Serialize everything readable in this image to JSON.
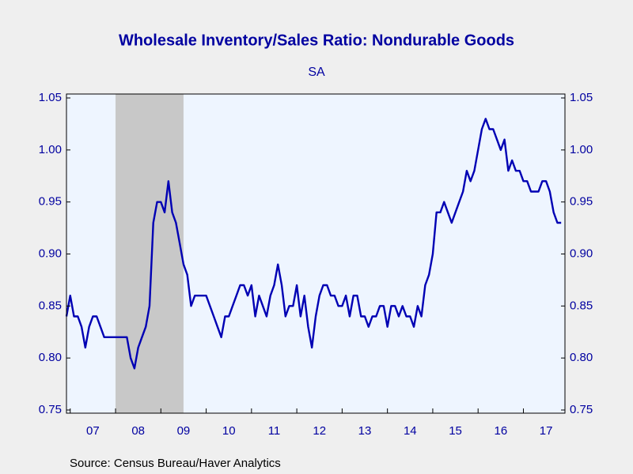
{
  "chart_data": {
    "type": "line",
    "title": "Wholesale Inventory/Sales Ratio: Nondurable Goods",
    "subtitle": "SA",
    "source": "Source:  Census Bureau/Haver Analytics",
    "x": [
      2006.917,
      2007,
      2007.083,
      2007.167,
      2007.25,
      2007.333,
      2007.417,
      2007.5,
      2007.583,
      2007.667,
      2007.75,
      2007.833,
      2007.917,
      2008,
      2008.083,
      2008.167,
      2008.25,
      2008.333,
      2008.417,
      2008.5,
      2008.583,
      2008.667,
      2008.75,
      2008.833,
      2008.917,
      2009,
      2009.083,
      2009.167,
      2009.25,
      2009.333,
      2009.417,
      2009.5,
      2009.583,
      2009.667,
      2009.75,
      2009.833,
      2009.917,
      2010,
      2010.083,
      2010.167,
      2010.25,
      2010.333,
      2010.417,
      2010.5,
      2010.583,
      2010.667,
      2010.75,
      2010.833,
      2010.917,
      2011,
      2011.083,
      2011.167,
      2011.25,
      2011.333,
      2011.417,
      2011.5,
      2011.583,
      2011.667,
      2011.75,
      2011.833,
      2011.917,
      2012,
      2012.083,
      2012.167,
      2012.25,
      2012.333,
      2012.417,
      2012.5,
      2012.583,
      2012.667,
      2012.75,
      2012.833,
      2012.917,
      2013,
      2013.083,
      2013.167,
      2013.25,
      2013.333,
      2013.417,
      2013.5,
      2013.583,
      2013.667,
      2013.75,
      2013.833,
      2013.917,
      2014,
      2014.083,
      2014.167,
      2014.25,
      2014.333,
      2014.417,
      2014.5,
      2014.583,
      2014.667,
      2014.75,
      2014.833,
      2014.917,
      2015,
      2015.083,
      2015.167,
      2015.25,
      2015.333,
      2015.417,
      2015.5,
      2015.583,
      2015.667,
      2015.75,
      2015.833,
      2015.917,
      2016,
      2016.083,
      2016.167,
      2016.25,
      2016.333,
      2016.417,
      2016.5,
      2016.583,
      2016.667,
      2016.75,
      2016.833,
      2016.917,
      2017,
      2017.083,
      2017.167,
      2017.25,
      2017.333,
      2017.417,
      2017.5,
      2017.583,
      2017.667,
      2017.75,
      2017.833
    ],
    "series": [
      {
        "color": "#0000b4",
        "values": [
          0.84,
          0.86,
          0.84,
          0.84,
          0.83,
          0.81,
          0.83,
          0.84,
          0.84,
          0.83,
          0.82,
          0.82,
          0.82,
          0.82,
          0.82,
          0.82,
          0.82,
          0.8,
          0.79,
          0.81,
          0.82,
          0.83,
          0.85,
          0.93,
          0.95,
          0.95,
          0.94,
          0.97,
          0.94,
          0.93,
          0.91,
          0.89,
          0.88,
          0.85,
          0.86,
          0.86,
          0.86,
          0.86,
          0.85,
          0.84,
          0.83,
          0.82,
          0.84,
          0.84,
          0.85,
          0.86,
          0.87,
          0.87,
          0.86,
          0.87,
          0.84,
          0.86,
          0.85,
          0.84,
          0.86,
          0.87,
          0.89,
          0.87,
          0.84,
          0.85,
          0.85,
          0.87,
          0.84,
          0.86,
          0.83,
          0.81,
          0.84,
          0.86,
          0.87,
          0.87,
          0.86,
          0.86,
          0.85,
          0.85,
          0.86,
          0.84,
          0.86,
          0.86,
          0.84,
          0.84,
          0.83,
          0.84,
          0.84,
          0.85,
          0.85,
          0.83,
          0.85,
          0.85,
          0.84,
          0.85,
          0.84,
          0.84,
          0.83,
          0.85,
          0.84,
          0.87,
          0.88,
          0.9,
          0.94,
          0.94,
          0.95,
          0.94,
          0.93,
          0.94,
          0.95,
          0.96,
          0.98,
          0.97,
          0.98,
          1.0,
          1.02,
          1.03,
          1.02,
          1.02,
          1.01,
          1.0,
          1.01,
          0.98,
          0.99,
          0.98,
          0.98,
          0.97,
          0.97,
          0.96,
          0.96,
          0.96,
          0.97,
          0.97,
          0.96,
          0.94,
          0.93,
          0.93
        ]
      }
    ],
    "shaded_regions": [
      [
        2008.0,
        2009.5
      ]
    ],
    "shade_color": "#c8c8c8",
    "xlim": [
      2006.917,
      2017.917
    ],
    "xticks": [
      {
        "value": 2007,
        "label": "07"
      },
      {
        "value": 2008,
        "label": "08"
      },
      {
        "value": 2009,
        "label": "09"
      },
      {
        "value": 2010,
        "label": "10"
      },
      {
        "value": 2011,
        "label": "11"
      },
      {
        "value": 2012,
        "label": "12"
      },
      {
        "value": 2013,
        "label": "13"
      },
      {
        "value": 2014,
        "label": "14"
      },
      {
        "value": 2015,
        "label": "15"
      },
      {
        "value": 2016,
        "label": "16"
      },
      {
        "value": 2017,
        "label": "17"
      }
    ],
    "ylim": [
      0.75,
      1.05
    ],
    "yticks": [
      {
        "value": 0.75,
        "label": "0.75"
      },
      {
        "value": 0.8,
        "label": "0.80"
      },
      {
        "value": 0.85,
        "label": "0.85"
      },
      {
        "value": 0.9,
        "label": "0.90"
      },
      {
        "value": 0.95,
        "label": "0.95"
      },
      {
        "value": 1.0,
        "label": "1.00"
      },
      {
        "value": 1.05,
        "label": "1.05"
      }
    ]
  }
}
